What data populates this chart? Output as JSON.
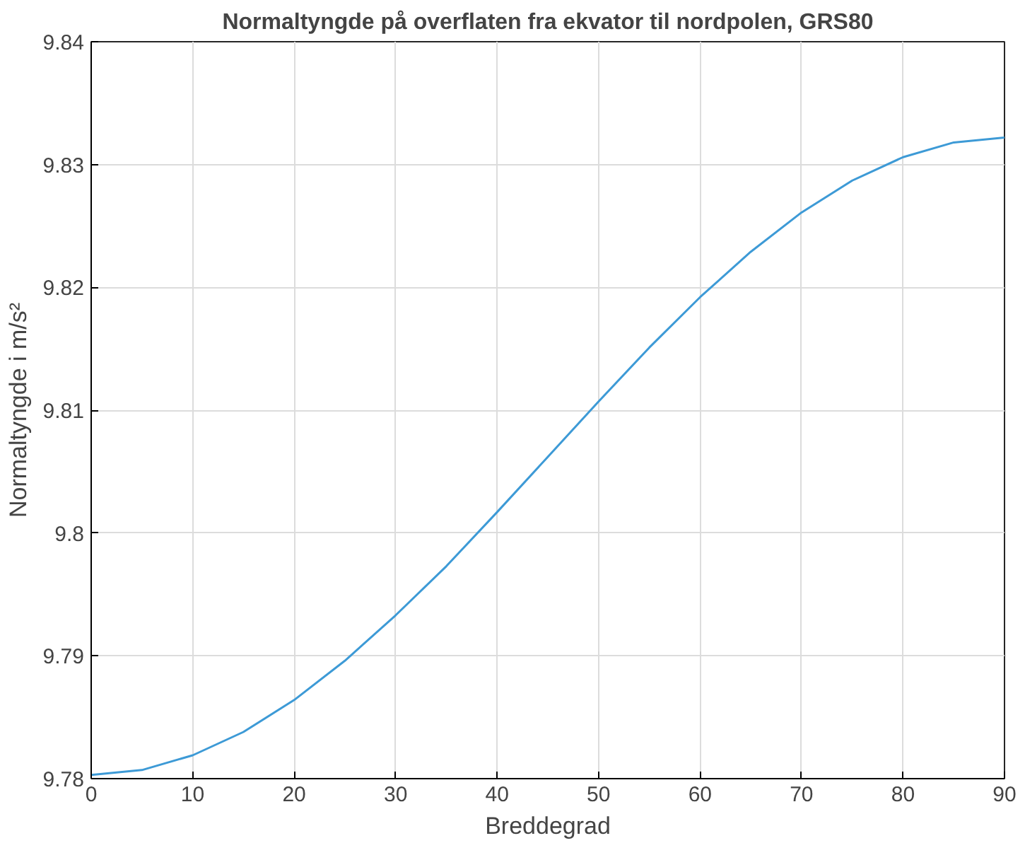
{
  "chart_data": {
    "type": "line",
    "title": "Normaltyngde på overflaten fra ekvator til nordpolen, GRS80",
    "xlabel": "Breddegrad",
    "ylabel": "Normaltyngde i m/s²",
    "x": [
      0,
      5,
      10,
      15,
      20,
      25,
      30,
      35,
      40,
      45,
      50,
      55,
      60,
      65,
      70,
      75,
      80,
      85,
      90
    ],
    "series": [
      {
        "color": "#3d9ad6",
        "values": [
          9.7803,
          9.7807,
          9.7819,
          9.7838,
          9.7864,
          9.7896,
          9.7933,
          9.7973,
          9.8017,
          9.8062,
          9.8107,
          9.8151,
          9.8192,
          9.8229,
          9.8261,
          9.8287,
          9.8306,
          9.8318,
          9.8322
        ]
      }
    ],
    "xlim": [
      0,
      90
    ],
    "xticks": [
      0,
      10,
      20,
      30,
      40,
      50,
      60,
      70,
      80,
      90
    ],
    "ylim": [
      9.78,
      9.84
    ],
    "yticks": [
      9.78,
      9.79,
      {
        "value": 9.8,
        "label": "9.8"
      },
      9.81,
      9.82,
      9.83,
      9.84
    ],
    "grid": true,
    "marker": "none",
    "line_style": "solid"
  }
}
